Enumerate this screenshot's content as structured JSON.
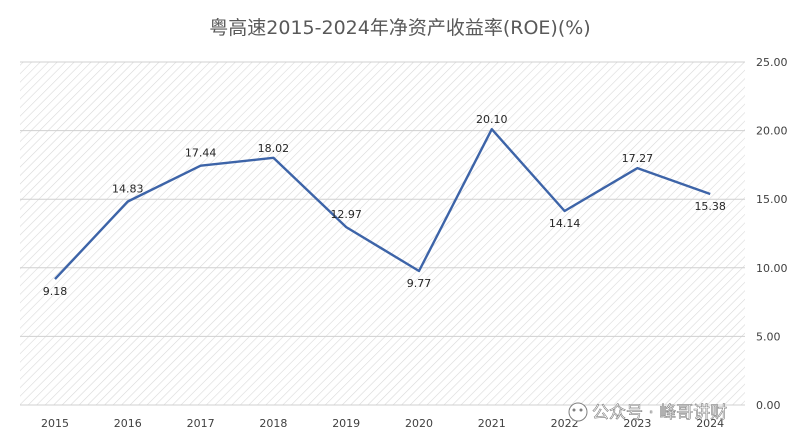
{
  "chart_data": {
    "type": "line",
    "title": "粤高速2015-2024年净资产收益率(ROE)(%)",
    "xlabel": "",
    "ylabel": "",
    "categories": [
      "2015",
      "2016",
      "2017",
      "2018",
      "2019",
      "2020",
      "2021",
      "2022",
      "2023",
      "2024"
    ],
    "series": [
      {
        "values": [
          9.18,
          14.83,
          17.44,
          18.02,
          12.97,
          9.77,
          20.1,
          14.14,
          17.27,
          15.38
        ],
        "labels": [
          "9.18",
          "14.83",
          "17.44",
          "18.02",
          "12.97",
          "9.77",
          "20.10",
          "14.14",
          "17.27",
          "15.38"
        ],
        "color": "#3d64a8"
      }
    ],
    "ylim": [
      0,
      25
    ],
    "yticks": [
      0,
      5,
      10,
      15,
      20,
      25
    ],
    "ytick_labels": [
      "0.00",
      "5.00",
      "10.00",
      "15.00",
      "20.00",
      "25.00"
    ],
    "y_axis_side": "right",
    "grid": "horizontal",
    "plot_background": "diagonal-hatch",
    "legend": "none"
  },
  "watermark": {
    "text": "公众号 · 峰哥讲财"
  }
}
